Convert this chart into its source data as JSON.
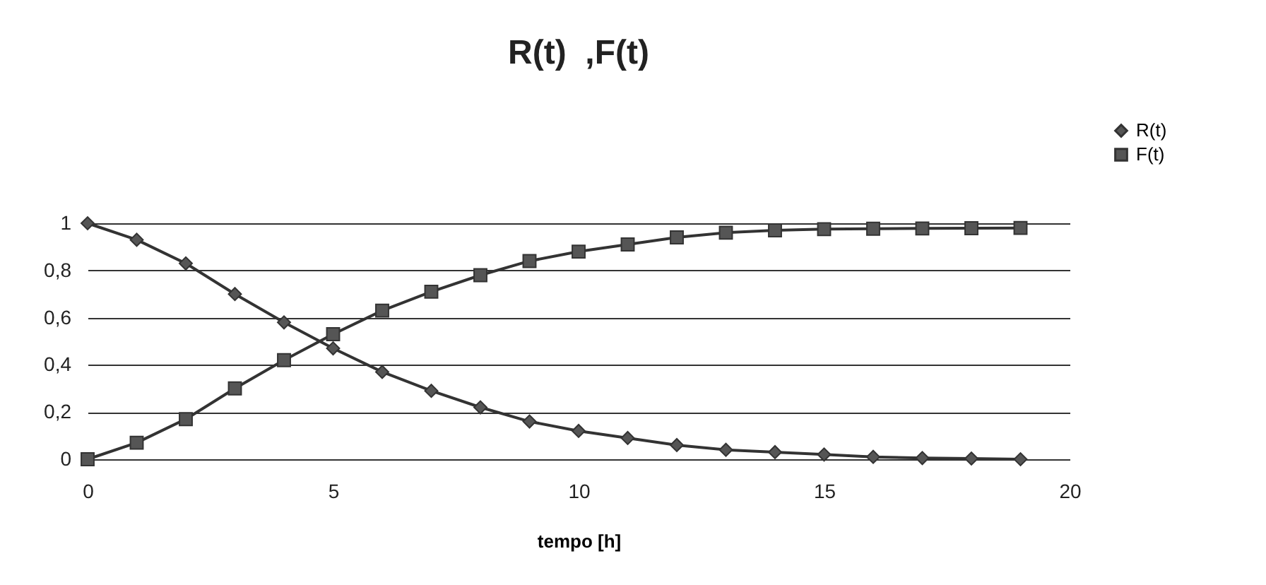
{
  "chart_data": {
    "type": "line",
    "title": "R(t)  ,F(t)",
    "xlabel": "tempo [h]",
    "x": [
      0,
      1,
      2,
      3,
      4,
      5,
      6,
      7,
      8,
      9,
      10,
      11,
      12,
      13,
      14,
      15,
      16,
      17,
      18,
      19
    ],
    "series": [
      {
        "name": "R(t)",
        "color": "#555555",
        "marker": "diamond",
        "values": [
          1,
          0.93,
          0.83,
          0.7,
          0.58,
          0.47,
          0.37,
          0.29,
          0.22,
          0.16,
          0.12,
          0.09,
          0.06,
          0.04,
          0.03,
          0.02,
          0.01,
          0.005,
          0.003,
          0
        ]
      },
      {
        "name": "F(t)",
        "color": "#555555",
        "marker": "square",
        "values": [
          0,
          0.07,
          0.17,
          0.3,
          0.42,
          0.53,
          0.63,
          0.71,
          0.78,
          0.84,
          0.88,
          0.91,
          0.94,
          0.96,
          0.97,
          0.975,
          0.977,
          0.978,
          0.979,
          0.98
        ]
      }
    ],
    "xlim": [
      0,
      20
    ],
    "xticks": [
      0,
      5,
      10,
      15,
      20
    ],
    "ylim": [
      0,
      1
    ],
    "yticks": [
      0,
      {
        "value": 0.2,
        "label": "0,2"
      },
      {
        "value": 0.4,
        "label": "0,4"
      },
      {
        "value": 0.6,
        "label": "0,6"
      },
      {
        "value": 0.8,
        "label": "0,8"
      },
      1
    ],
    "grid": "y",
    "legend": "top right",
    "line_style": "solid"
  }
}
